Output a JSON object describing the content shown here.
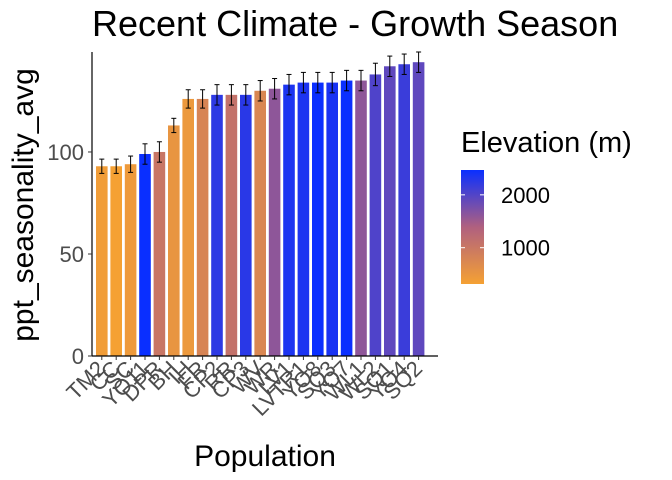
{
  "chart_data": {
    "type": "bar",
    "title": "Recent Climate - Growth Season",
    "xlabel": "Population",
    "ylabel": "ppt_seasonality_avg",
    "ylim": [
      0,
      149
    ],
    "yticks": [
      0,
      50,
      100
    ],
    "grid": false,
    "legend": {
      "title": "Elevation (m)",
      "position": "right",
      "range": [
        313,
        2470
      ],
      "ticks": [
        1000,
        2000
      ],
      "low_color": "#F5A133",
      "high_color": "#0A2FFF"
    },
    "categories": [
      "TM2",
      "CC",
      "SC",
      "YO11",
      "DPR",
      "BH",
      "IH",
      "FR",
      "CP2",
      "RR",
      "CP3",
      "WV",
      "WR",
      "LV1",
      "LVTR1",
      "YO8",
      "SQ3",
      "YO7",
      "WL1",
      "WL2",
      "SQ1",
      "YO4",
      "SQ2"
    ],
    "values": [
      93,
      93,
      94,
      99,
      100,
      113,
      126,
      126,
      128,
      128,
      128,
      130,
      131,
      133,
      134,
      134,
      134,
      135,
      135,
      138,
      142,
      143,
      144
    ],
    "errors": [
      3.5,
      3.5,
      4,
      5,
      5,
      3.5,
      4.5,
      4.5,
      5,
      5,
      5,
      5,
      5,
      5,
      5,
      5,
      5,
      5,
      5,
      5.5,
      5,
      5,
      5
    ],
    "elevation": [
      379,
      313,
      422,
      2470,
      1019,
      511,
      454,
      787,
      2244,
      1087,
      2266,
      749,
      1614,
      2353,
      2353,
      2470,
      2373,
      2470,
      1614,
      2020,
      1921,
      2158,
      1921
    ]
  }
}
